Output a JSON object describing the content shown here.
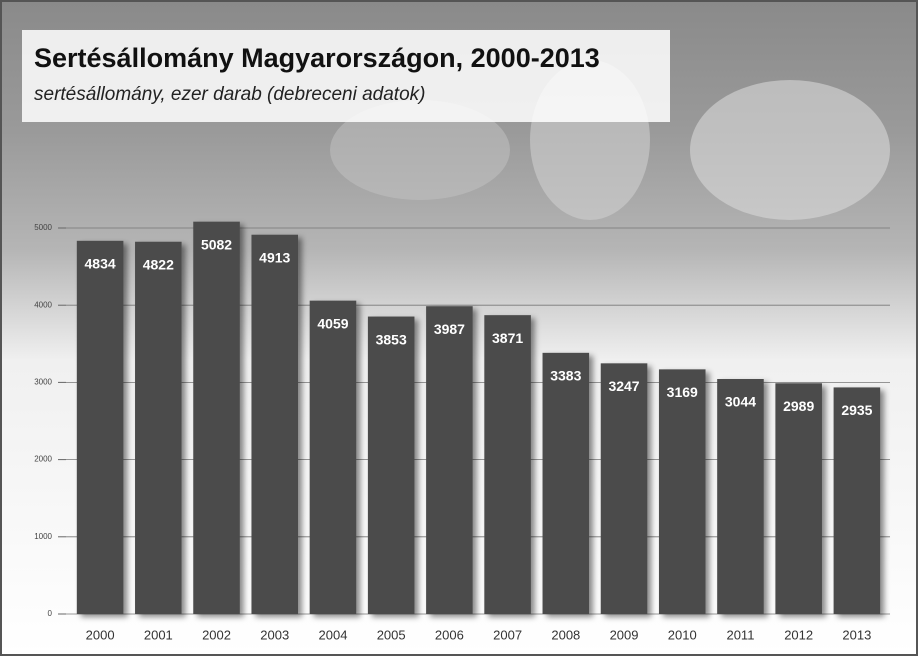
{
  "chart_data": {
    "type": "bar",
    "title": "Sertésállomány Magyarországon, 2000-2013",
    "subtitle": "sertésállomány, ezer darab (debreceni adatok)",
    "categories": [
      "2000",
      "2001",
      "2002",
      "2003",
      "2004",
      "2005",
      "2006",
      "2007",
      "2008",
      "2009",
      "2010",
      "2011",
      "2012",
      "2013"
    ],
    "values": [
      4834,
      4822,
      5082,
      4913,
      4059,
      3853,
      3987,
      3871,
      3383,
      3247,
      3169,
      3044,
      2989,
      2935
    ],
    "color": "#4b4b4b",
    "ylim": [
      0,
      5000
    ],
    "yticks": [
      0,
      1000,
      2000,
      3000,
      4000,
      5000
    ],
    "grid": true
  }
}
